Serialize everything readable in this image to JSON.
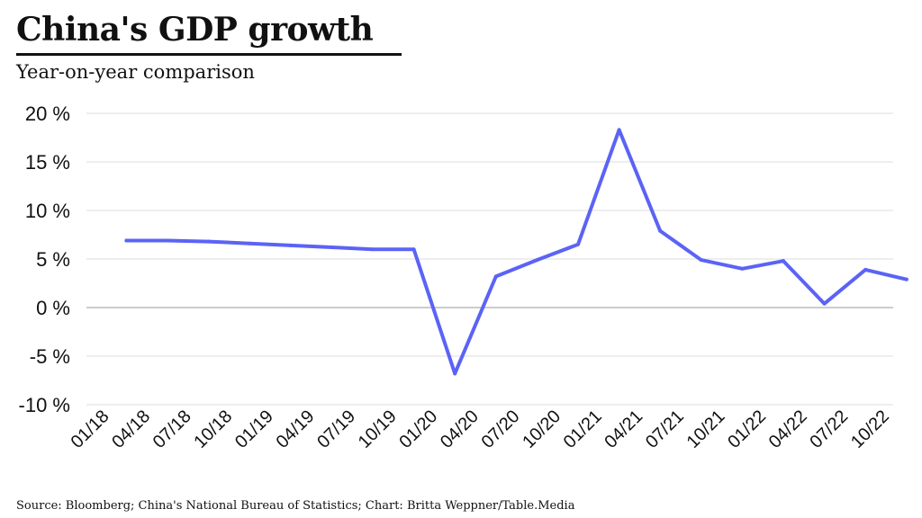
{
  "chart_data": {
    "type": "line",
    "title": "China's GDP growth",
    "subtitle": "Year-on-year comparison",
    "source": "Source: Bloomberg; China's National Bureau of Statistics; Chart: Britta Weppner/Table.Media",
    "xlabel": "",
    "ylabel": "",
    "y_unit": " %",
    "ylim": [
      -10,
      20
    ],
    "y_ticks": [
      -10,
      -5,
      0,
      5,
      10,
      15,
      20
    ],
    "grid": true,
    "line_color": "#5b63f6",
    "grid_color": "#dcdcdc",
    "zero_line_color": "#999999",
    "x_tick_labels": [
      "01/18",
      "04/18",
      "07/18",
      "10/18",
      "01/19",
      "04/19",
      "07/19",
      "10/19",
      "01/20",
      "04/20",
      "07/20",
      "10/20",
      "01/21",
      "04/21",
      "07/21",
      "10/21",
      "01/22",
      "04/22",
      "07/22",
      "10/22"
    ],
    "x": [
      "01/18",
      "02/18",
      "03/18",
      "04/18",
      "05/18",
      "06/18",
      "07/18",
      "08/18",
      "09/18",
      "10/18",
      "11/18",
      "12/18",
      "01/19",
      "02/19",
      "03/19",
      "04/19",
      "05/19",
      "06/19",
      "07/19",
      "08/19",
      "09/19",
      "10/19",
      "11/19",
      "12/19",
      "01/20",
      "02/20",
      "03/20",
      "04/20",
      "05/20",
      "06/20",
      "07/20",
      "08/20",
      "09/20",
      "10/20",
      "11/20",
      "12/20",
      "01/21",
      "02/21",
      "03/21",
      "04/21",
      "05/21",
      "06/21",
      "07/21",
      "08/21",
      "09/21",
      "10/21",
      "11/21",
      "12/21",
      "01/22",
      "02/22",
      "03/22",
      "04/22",
      "05/22",
      "06/22",
      "07/22",
      "08/22",
      "09/22",
      "10/22",
      "11/22",
      "12/22"
    ],
    "series": [
      {
        "values": [
          null,
          null,
          6.9,
          null,
          null,
          6.9,
          null,
          null,
          6.8,
          null,
          null,
          6.6,
          null,
          null,
          6.4,
          null,
          null,
          6.2,
          null,
          null,
          6.0,
          null,
          null,
          6.0,
          null,
          null,
          -6.8,
          null,
          null,
          3.2,
          null,
          null,
          4.9,
          null,
          null,
          6.5,
          null,
          null,
          18.3,
          null,
          null,
          7.9,
          null,
          null,
          4.9,
          null,
          null,
          4.0,
          null,
          null,
          4.8,
          null,
          null,
          0.4,
          null,
          null,
          3.9,
          null,
          null,
          2.9
        ]
      }
    ]
  }
}
